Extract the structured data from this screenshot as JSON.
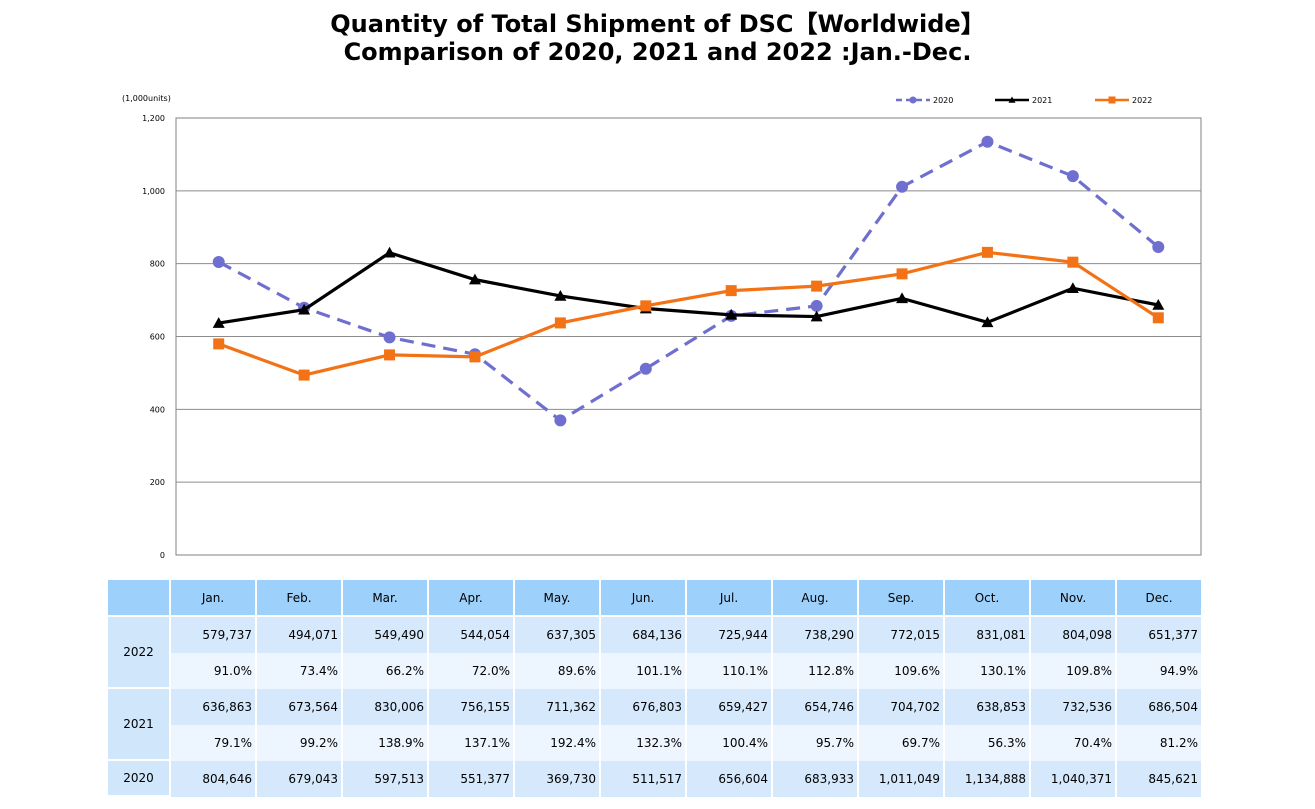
{
  "title_line1": "Quantity of Total Shipment of DSC【Worldwide】",
  "title_line2": "Comparison of 2020, 2021 and 2022 :Jan.-Dec.",
  "chart_data": {
    "type": "line",
    "unit_label": "(1,000units)",
    "ylim": [
      0,
      1200
    ],
    "yticks": [
      "0",
      "200",
      "400",
      "600",
      "800",
      "1,000",
      "1,200"
    ],
    "ytick_values": [
      0,
      200,
      400,
      600,
      800,
      1000,
      1200
    ],
    "grid": true,
    "legend_position": "top-right",
    "categories": [
      "Jan.",
      "Feb.",
      "Mar.",
      "Apr.",
      "May.",
      "Jun.",
      "Jul.",
      "Aug.",
      "Sep.",
      "Oct.",
      "Nov.",
      "Dec."
    ],
    "series": [
      {
        "name": "2020",
        "color": "#6f6fd0",
        "dash": true,
        "marker": "circle",
        "values": [
          804.646,
          679.043,
          597.513,
          551.377,
          369.73,
          511.517,
          656.604,
          683.933,
          1011.049,
          1134.888,
          1040.371,
          845.621
        ]
      },
      {
        "name": "2021",
        "color": "#000000",
        "dash": false,
        "marker": "triangle",
        "values": [
          636.863,
          673.564,
          830.006,
          756.155,
          711.362,
          676.803,
          659.427,
          654.746,
          704.702,
          638.853,
          732.536,
          686.504
        ]
      },
      {
        "name": "2022",
        "color": "#f47216",
        "dash": false,
        "marker": "square",
        "values": [
          579.737,
          494.071,
          549.49,
          544.054,
          637.305,
          684.136,
          725.944,
          738.29,
          772.015,
          831.081,
          804.098,
          651.377
        ]
      }
    ]
  },
  "table": {
    "months": [
      "Jan.",
      "Feb.",
      "Mar.",
      "Apr.",
      "May.",
      "Jun.",
      "Jul.",
      "Aug.",
      "Sep.",
      "Oct.",
      "Nov.",
      "Dec."
    ],
    "rows": [
      {
        "year": "2022",
        "values": [
          "579,737",
          "494,071",
          "549,490",
          "544,054",
          "637,305",
          "684,136",
          "725,944",
          "738,290",
          "772,015",
          "831,081",
          "804,098",
          "651,377"
        ],
        "ratios": [
          "91.0%",
          "73.4%",
          "66.2%",
          "72.0%",
          "89.6%",
          "101.1%",
          "110.1%",
          "112.8%",
          "109.6%",
          "130.1%",
          "109.8%",
          "94.9%"
        ]
      },
      {
        "year": "2021",
        "values": [
          "636,863",
          "673,564",
          "830,006",
          "756,155",
          "711,362",
          "676,803",
          "659,427",
          "654,746",
          "704,702",
          "638,853",
          "732,536",
          "686,504"
        ],
        "ratios": [
          "79.1%",
          "99.2%",
          "138.9%",
          "137.1%",
          "192.4%",
          "132.3%",
          "100.4%",
          "95.7%",
          "69.7%",
          "56.3%",
          "70.4%",
          "81.2%"
        ]
      },
      {
        "year": "2020",
        "values": [
          "804,646",
          "679,043",
          "597,513",
          "551,377",
          "369,730",
          "511,517",
          "656,604",
          "683,933",
          "1,011,049",
          "1,134,888",
          "1,040,371",
          "845,621"
        ]
      }
    ]
  }
}
